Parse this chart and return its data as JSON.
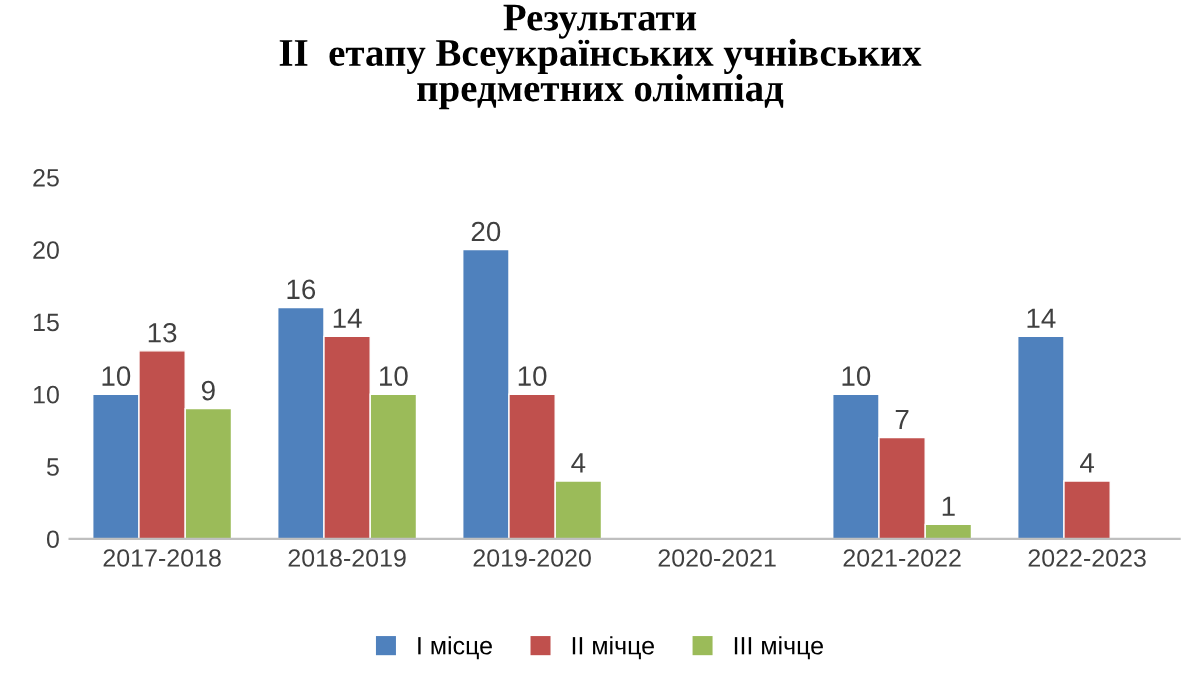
{
  "chart_data": {
    "type": "bar",
    "title": "Результати\nІІ  етапу Всеукраїнських учнівських\nпредметних олімпіад",
    "categories": [
      "2017-2018",
      "2018-2019",
      "2019-2020",
      "2020-2021",
      "2021-2022",
      "2022-2023"
    ],
    "series": [
      {
        "name": "І місце",
        "color": "#4f81bd",
        "values": [
          10,
          16,
          20,
          null,
          10,
          14
        ]
      },
      {
        "name": "ІІ мічце",
        "color": "#c0504d",
        "values": [
          13,
          14,
          10,
          null,
          7,
          4
        ]
      },
      {
        "name": "ІІІ мічце",
        "color": "#9bbb59",
        "values": [
          9,
          10,
          4,
          null,
          1,
          null
        ]
      }
    ],
    "ylim": [
      0,
      25
    ],
    "yticks": [
      0,
      5,
      10,
      15,
      20,
      25
    ],
    "grid": false,
    "legend": "bottom",
    "data_labels": true
  }
}
